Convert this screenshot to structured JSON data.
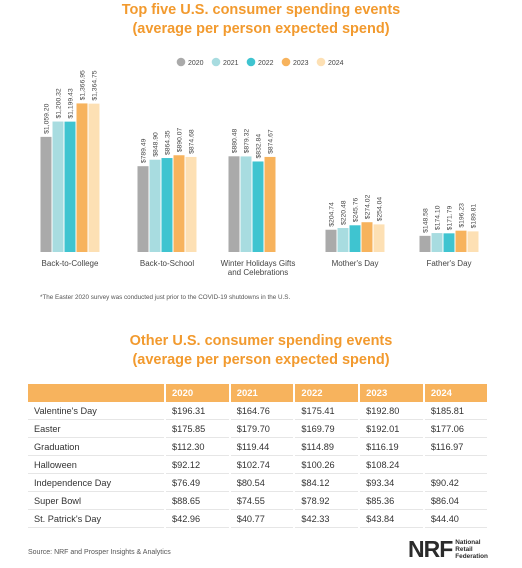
{
  "title1": {
    "line1": "Top five U.S. consumer spending events",
    "line2": "(average per person expected spend)"
  },
  "title2": {
    "line1": "Other U.S. consumer spending events",
    "line2": "(average per person expected spend)"
  },
  "footnote": "*The Easter 2020 survey was conducted just prior to the COVID-19 shutdowns in the U.S.",
  "source": "Source: NRF and Prosper Insights & Analytics",
  "logo": {
    "mark": "NRF",
    "lines": [
      "National",
      "Retail",
      "Federation"
    ]
  },
  "colors": {
    "title": "#f29a2e",
    "2020": "#aaaaaa",
    "2021": "#a8dce0",
    "2022": "#3fc4d0",
    "2023": "#f7b35d",
    "2024": "#fde0b4"
  },
  "chart_data": [
    {
      "type": "bar",
      "categories": [
        "Back-to-College",
        "Back-to-School",
        "Winter Holidays Gifts and Celebrations",
        "Mother's Day",
        "Father's Day"
      ],
      "series": [
        {
          "name": "2020",
          "values": [
            1059.2,
            789.49,
            880.48,
            204.74,
            148.58
          ],
          "labels": [
            "$1,059.20",
            "$789.49",
            "$880.48",
            "$204.74",
            "$148.58"
          ]
        },
        {
          "name": "2021",
          "values": [
            1200.32,
            848.9,
            879.32,
            220.48,
            174.1
          ],
          "labels": [
            "$1,200.32",
            "$848.90",
            "$879.32",
            "$220.48",
            "$174.10"
          ]
        },
        {
          "name": "2022",
          "values": [
            1199.43,
            864.35,
            832.84,
            245.76,
            171.79
          ],
          "labels": [
            "$1,199.43",
            "$864.35",
            "$832.84",
            "$245.76",
            "$171.79"
          ]
        },
        {
          "name": "2023",
          "values": [
            1366.95,
            890.07,
            874.67,
            274.02,
            196.23
          ],
          "labels": [
            "$1,366.95",
            "$890.07",
            "$874.67",
            "$274.02",
            "$196.23"
          ]
        },
        {
          "name": "2024",
          "values": [
            1364.75,
            874.68,
            null,
            254.04,
            189.81
          ],
          "labels": [
            "$1,364.75",
            "$874.68",
            "",
            "$254.04",
            "$189.81"
          ]
        }
      ],
      "ylim": [
        0,
        1380
      ],
      "legend": "top-right"
    },
    {
      "type": "table",
      "columns": [
        "",
        "2020",
        "2021",
        "2022",
        "2023",
        "2024"
      ],
      "rows": [
        [
          "Valentine's Day",
          "$196.31",
          "$164.76",
          "$175.41",
          "$192.80",
          "$185.81"
        ],
        [
          "Easter",
          "$175.85",
          "$179.70",
          "$169.79",
          "$192.01",
          "$177.06"
        ],
        [
          "Graduation",
          "$112.30",
          "$119.44",
          "$114.89",
          "$116.19",
          "$116.97"
        ],
        [
          "Halloween",
          "$92.12",
          "$102.74",
          "$100.26",
          "$108.24",
          ""
        ],
        [
          "Independence Day",
          "$76.49",
          "$80.54",
          "$84.12",
          "$93.34",
          "$90.42"
        ],
        [
          "Super Bowl",
          "$88.65",
          "$74.55",
          "$78.92",
          "$85.36",
          "$86.04"
        ],
        [
          "St. Patrick's Day",
          "$42.96",
          "$40.77",
          "$42.33",
          "$43.84",
          "$44.40"
        ]
      ]
    }
  ]
}
